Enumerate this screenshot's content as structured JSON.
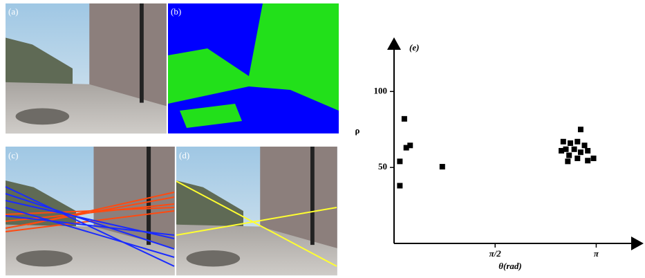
{
  "panels": {
    "labels": [
      "(a)",
      "(b)",
      "(c)",
      "(d)"
    ]
  },
  "chart_data": {
    "type": "scatter",
    "title": "(e)",
    "x_label": "θ(rad)",
    "y_label": "ρ",
    "x": [
      0.16,
      0.19,
      0.25,
      0.09,
      0.09,
      0.75,
      2.9,
      2.63,
      2.74,
      2.85,
      2.96,
      2.67,
      2.8,
      2.9,
      3.01,
      2.72,
      2.85,
      2.7,
      3.01,
      3.1,
      2.6
    ],
    "values": [
      82,
      63,
      64.5,
      54,
      38,
      50.5,
      75,
      67,
      66,
      67,
      64.5,
      62,
      62,
      60,
      61,
      58,
      56,
      54,
      54.5,
      56,
      61
    ],
    "color": "#000000",
    "xlim": [
      0,
      3.76
    ],
    "ylim": [
      0,
      132
    ],
    "xticks": [
      {
        "value": 1.5708,
        "label": "π/2"
      },
      {
        "value": 3.1416,
        "label": "π"
      }
    ],
    "yticks": [
      50,
      100
    ]
  }
}
